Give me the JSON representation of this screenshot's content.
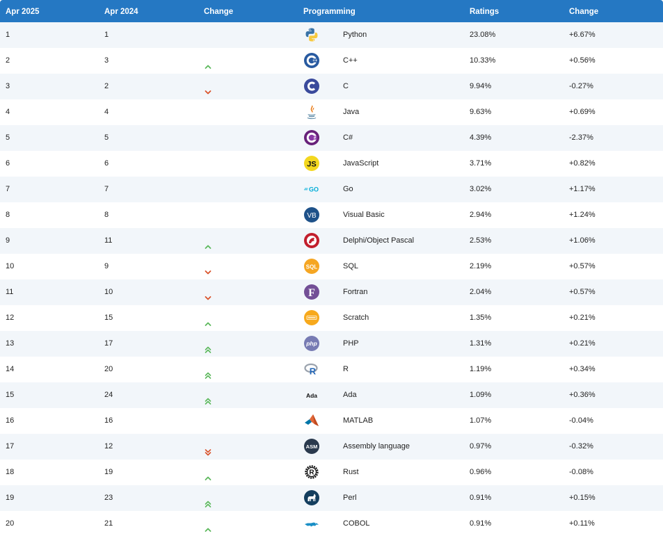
{
  "header": {
    "col_rank_now": "Apr 2025",
    "col_rank_prev": "Apr 2024",
    "col_change": "Change",
    "col_language": "Programming Language",
    "col_ratings": "Ratings",
    "col_change_pct": "Change"
  },
  "colors": {
    "header_bg": "#2578c3",
    "row_alt_bg": "#f2f6fa",
    "up_arrow": "#5cb85c",
    "down_arrow": "#d9532b"
  },
  "rows": [
    {
      "rank_now": "1",
      "rank_prev": "1",
      "trend": "none",
      "icon": "python-icon",
      "language": "Python",
      "rating": "23.08%",
      "change": "+6.67%"
    },
    {
      "rank_now": "2",
      "rank_prev": "3",
      "trend": "up",
      "icon": "cplusplus-icon",
      "language": "C++",
      "rating": "10.33%",
      "change": "+0.56%"
    },
    {
      "rank_now": "3",
      "rank_prev": "2",
      "trend": "down",
      "icon": "c-icon",
      "language": "C",
      "rating": "9.94%",
      "change": "-0.27%"
    },
    {
      "rank_now": "4",
      "rank_prev": "4",
      "trend": "none",
      "icon": "java-icon",
      "language": "Java",
      "rating": "9.63%",
      "change": "+0.69%"
    },
    {
      "rank_now": "5",
      "rank_prev": "5",
      "trend": "none",
      "icon": "csharp-icon",
      "language": "C#",
      "rating": "4.39%",
      "change": "-2.37%"
    },
    {
      "rank_now": "6",
      "rank_prev": "6",
      "trend": "none",
      "icon": "javascript-icon",
      "language": "JavaScript",
      "rating": "3.71%",
      "change": "+0.82%"
    },
    {
      "rank_now": "7",
      "rank_prev": "7",
      "trend": "none",
      "icon": "go-icon",
      "language": "Go",
      "rating": "3.02%",
      "change": "+1.17%"
    },
    {
      "rank_now": "8",
      "rank_prev": "8",
      "trend": "none",
      "icon": "visual-basic-icon",
      "language": "Visual Basic",
      "rating": "2.94%",
      "change": "+1.24%"
    },
    {
      "rank_now": "9",
      "rank_prev": "11",
      "trend": "up",
      "icon": "delphi-icon",
      "language": "Delphi/Object Pascal",
      "rating": "2.53%",
      "change": "+1.06%"
    },
    {
      "rank_now": "10",
      "rank_prev": "9",
      "trend": "down",
      "icon": "sql-icon",
      "language": "SQL",
      "rating": "2.19%",
      "change": "+0.57%"
    },
    {
      "rank_now": "11",
      "rank_prev": "10",
      "trend": "down",
      "icon": "fortran-icon",
      "language": "Fortran",
      "rating": "2.04%",
      "change": "+0.57%"
    },
    {
      "rank_now": "12",
      "rank_prev": "15",
      "trend": "up",
      "icon": "scratch-icon",
      "language": "Scratch",
      "rating": "1.35%",
      "change": "+0.21%"
    },
    {
      "rank_now": "13",
      "rank_prev": "17",
      "trend": "up2",
      "icon": "php-icon",
      "language": "PHP",
      "rating": "1.31%",
      "change": "+0.21%"
    },
    {
      "rank_now": "14",
      "rank_prev": "20",
      "trend": "up2",
      "icon": "r-icon",
      "language": "R",
      "rating": "1.19%",
      "change": "+0.34%"
    },
    {
      "rank_now": "15",
      "rank_prev": "24",
      "trend": "up2",
      "icon": "ada-icon",
      "language": "Ada",
      "rating": "1.09%",
      "change": "+0.36%"
    },
    {
      "rank_now": "16",
      "rank_prev": "16",
      "trend": "none",
      "icon": "matlab-icon",
      "language": "MATLAB",
      "rating": "1.07%",
      "change": "-0.04%"
    },
    {
      "rank_now": "17",
      "rank_prev": "12",
      "trend": "down2",
      "icon": "assembly-icon",
      "language": "Assembly language",
      "rating": "0.97%",
      "change": "-0.32%"
    },
    {
      "rank_now": "18",
      "rank_prev": "19",
      "trend": "up",
      "icon": "rust-icon",
      "language": "Rust",
      "rating": "0.96%",
      "change": "-0.08%"
    },
    {
      "rank_now": "19",
      "rank_prev": "23",
      "trend": "up2",
      "icon": "perl-icon",
      "language": "Perl",
      "rating": "0.91%",
      "change": "+0.15%"
    },
    {
      "rank_now": "20",
      "rank_prev": "21",
      "trend": "up",
      "icon": "cobol-icon",
      "language": "COBOL",
      "rating": "0.91%",
      "change": "+0.11%"
    }
  ]
}
